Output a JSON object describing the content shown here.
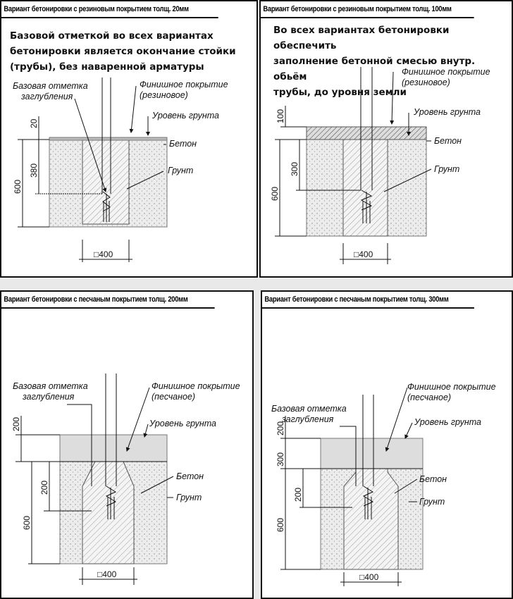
{
  "panels": [
    {
      "title": "Вариант бетонировки с резиновым покрытием толщ. 20мм",
      "note": [
        "Базовой отметкой во всех вариантах",
        "бетонировки является окончание стойки",
        "(трубы), без наваренной арматуры"
      ],
      "labels": {
        "base1": "Базовая отметка",
        "base2": "заглубления",
        "finish1": "Финишное покрытие",
        "finish2": "(резиновое)",
        "ground": "Уровень грунта",
        "concrete": "Бетон",
        "soil": "Грунт"
      },
      "dims": {
        "d1": "20",
        "d2": "380",
        "d3": "600",
        "width": "□400"
      }
    },
    {
      "title": "Вариант бетонировки с резиновым  покрытием толщ. 100мм",
      "note": [
        "Во всех вариантах бетонировки обеспечить",
        "заполнение бетонной смесью внутр. обьём",
        "трубы, до уровня земли"
      ],
      "labels": {
        "finish1": "Финишное покрытие",
        "finish2": "(резиновое)",
        "ground": "Уровень грунта",
        "concrete": "Бетон",
        "soil": "Грунт"
      },
      "dims": {
        "d1": "100",
        "d2": "300",
        "d3": "600",
        "width": "□400"
      }
    },
    {
      "title": "Вариант бетонировки с песчаным покрытием толщ. 200мм",
      "labels": {
        "base1": "Базовая отметка",
        "base2": "заглубления",
        "finish1": "Финишное покрытие",
        "finish2": "(песчаное)",
        "ground": "Уровень грунта",
        "concrete": "Бетон",
        "soil": "Грунт"
      },
      "dims": {
        "d1": "200",
        "d2": "200",
        "d3": "600",
        "width": "□400"
      }
    },
    {
      "title": "Вариант бетонировки с песчаным покрытием толщ. 300мм",
      "labels": {
        "base1": "Базовая отметка",
        "base2": "заглубления",
        "finish1": "Финишное покрытие",
        "finish2": "(песчаное)",
        "ground": "Уровень грунта",
        "concrete": "Бетон",
        "soil": "Грунт"
      },
      "dims": {
        "d0": "200",
        "d1": "300",
        "d2": "200",
        "d3": "600",
        "width": "□400"
      }
    }
  ]
}
